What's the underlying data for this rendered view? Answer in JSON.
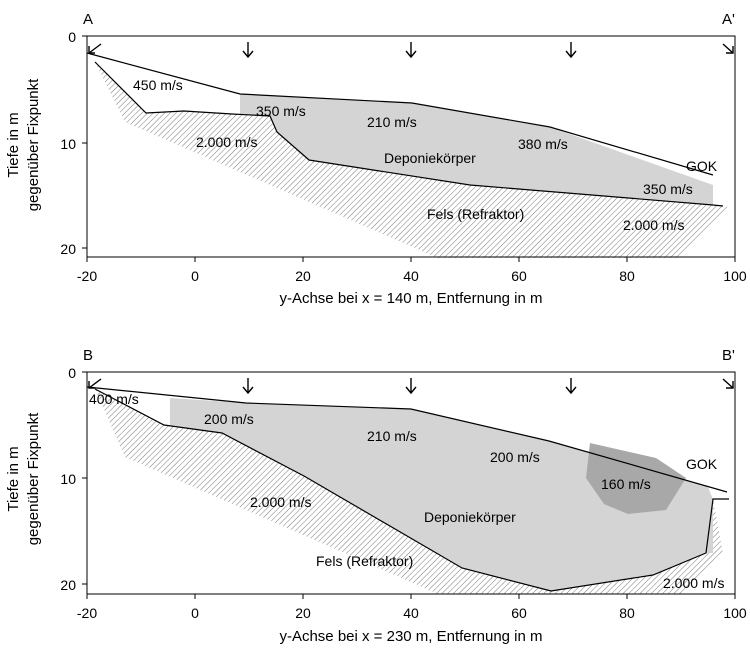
{
  "panels": [
    {
      "id": "top",
      "start_label": "A",
      "end_label": "A'",
      "x_axis_title": "y-Achse bei x = 140 m, Entfernung in m",
      "y_axis_title_line1": "Tiefe in m",
      "y_axis_title_line2": "gegenüber Fixpunkt",
      "x_ticks": [
        "-20",
        "0",
        "20",
        "40",
        "60",
        "80",
        "100"
      ],
      "y_ticks": [
        "0",
        "10",
        "20"
      ],
      "labels": {
        "v_450": "450 m/s",
        "v_350_left": "350 m/s",
        "v_210": "210 m/s",
        "v_380": "380 m/s",
        "v_2000_left": "2.000 m/s",
        "body": "Deponiekörper",
        "gok": "GOK",
        "v_350_right": "350 m/s",
        "rock": "Fels (Refraktor)",
        "v_2000_right": "2.000 m/s"
      }
    },
    {
      "id": "bottom",
      "start_label": "B",
      "end_label": "B'",
      "x_axis_title": "y-Achse bei x = 230 m, Entfernung in m",
      "y_axis_title_line1": "Tiefe in m",
      "y_axis_title_line2": "gegenüber Fixpunkt",
      "x_ticks": [
        "-20",
        "0",
        "20",
        "40",
        "60",
        "80",
        "100"
      ],
      "y_ticks": [
        "0",
        "10",
        "20"
      ],
      "labels": {
        "v_400": "400 m/s",
        "v_200_left": "200 m/s",
        "v_210": "210 m/s",
        "v_200_right": "200 m/s",
        "gok": "GOK",
        "v_160": "160 m/s",
        "v_2000_mid": "2.000 m/s",
        "body": "Deponiekörper",
        "rock": "Fels (Refraktor)",
        "v_2000_right": "2.000 m/s"
      }
    }
  ],
  "colors": {
    "landfill_fill": "#d4d4d4",
    "lens_fill": "#a8a8a8",
    "rock_hatch": "#7a7a7a",
    "line": "#000000"
  }
}
